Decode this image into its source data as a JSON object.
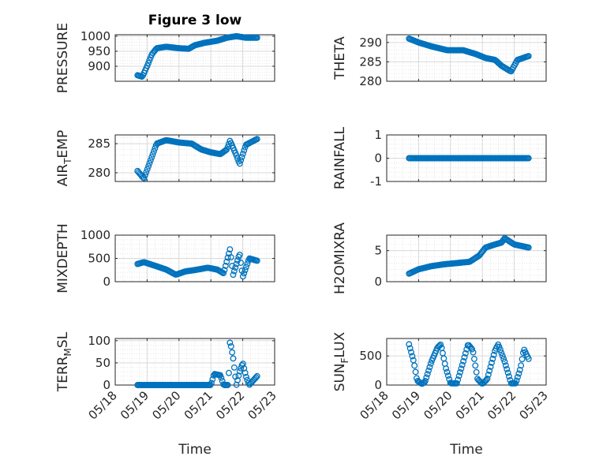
{
  "chart_data": [
    {
      "type": "scatter",
      "title": "Figure 3 low",
      "ylabel": "PRESSURE",
      "xlabel": "",
      "ylim": [
        850,
        1005
      ],
      "yticks": [
        900,
        950,
        1000
      ],
      "xlim_days": [
        "05/18",
        "05/23"
      ],
      "grid": true,
      "series_profile": [
        [
          18.7,
          870
        ],
        [
          18.85,
          865
        ],
        [
          19.0,
          900
        ],
        [
          19.15,
          940
        ],
        [
          19.3,
          960
        ],
        [
          19.6,
          965
        ],
        [
          20.0,
          960
        ],
        [
          20.3,
          958
        ],
        [
          20.5,
          970
        ],
        [
          20.8,
          978
        ],
        [
          21.2,
          985
        ],
        [
          21.5,
          995
        ],
        [
          21.8,
          1000
        ],
        [
          22.1,
          995
        ],
        [
          22.45,
          995
        ]
      ]
    },
    {
      "type": "scatter",
      "ylabel": "THETA",
      "ylim": [
        280,
        292
      ],
      "yticks": [
        280,
        285,
        290
      ],
      "grid": true,
      "series_profile": [
        [
          18.7,
          291
        ],
        [
          19.0,
          290
        ],
        [
          19.4,
          289
        ],
        [
          19.9,
          288
        ],
        [
          20.4,
          288
        ],
        [
          20.8,
          287
        ],
        [
          21.1,
          286
        ],
        [
          21.4,
          285.5
        ],
        [
          21.6,
          284
        ],
        [
          21.8,
          283
        ],
        [
          21.9,
          282.5
        ],
        [
          22.1,
          285.5
        ],
        [
          22.45,
          286.5
        ]
      ]
    },
    {
      "type": "scatter",
      "ylabel": "AIR_TEMP",
      "ylim": [
        278.5,
        286.5
      ],
      "yticks": [
        280,
        285
      ],
      "grid": true,
      "series_profile": [
        [
          18.7,
          280.3
        ],
        [
          18.9,
          279
        ],
        [
          19.1,
          282
        ],
        [
          19.3,
          285
        ],
        [
          19.6,
          285.6
        ],
        [
          20.0,
          285.2
        ],
        [
          20.4,
          285
        ],
        [
          20.7,
          284
        ],
        [
          21.0,
          283.5
        ],
        [
          21.3,
          283.2
        ],
        [
          21.5,
          284
        ],
        [
          21.6,
          285.5
        ],
        [
          21.8,
          283
        ],
        [
          21.9,
          281.5
        ],
        [
          22.1,
          284.8
        ],
        [
          22.45,
          285.8
        ]
      ]
    },
    {
      "type": "scatter",
      "ylabel": "RAINFALL",
      "ylim": [
        -1,
        1
      ],
      "yticks": [
        -1,
        0,
        1
      ],
      "grid": true,
      "series_profile": [
        [
          18.7,
          0
        ],
        [
          22.45,
          0
        ]
      ]
    },
    {
      "type": "scatter",
      "ylabel": "MIXDEPTH",
      "ylim": [
        0,
        1000
      ],
      "yticks": [
        0,
        500,
        1000
      ],
      "grid": true,
      "series_profile": [
        [
          18.7,
          380
        ],
        [
          18.9,
          420
        ],
        [
          19.3,
          330
        ],
        [
          19.6,
          260
        ],
        [
          19.9,
          150
        ],
        [
          20.2,
          220
        ],
        [
          20.5,
          250
        ],
        [
          20.9,
          300
        ],
        [
          21.2,
          260
        ],
        [
          21.4,
          180
        ],
        [
          21.6,
          700
        ],
        [
          21.7,
          150
        ],
        [
          21.9,
          600
        ],
        [
          22.0,
          100
        ],
        [
          22.2,
          500
        ],
        [
          22.45,
          450
        ]
      ]
    },
    {
      "type": "scatter",
      "ylabel": "H2OMIXRA",
      "ylim": [
        0,
        7.5
      ],
      "yticks": [
        0,
        5
      ],
      "grid": true,
      "series_profile": [
        [
          18.7,
          1.3
        ],
        [
          19.0,
          2.0
        ],
        [
          19.4,
          2.5
        ],
        [
          19.8,
          2.8
        ],
        [
          20.2,
          3.0
        ],
        [
          20.6,
          3.2
        ],
        [
          20.9,
          4.2
        ],
        [
          21.1,
          5.5
        ],
        [
          21.4,
          6.0
        ],
        [
          21.6,
          6.3
        ],
        [
          21.7,
          7.0
        ],
        [
          22.0,
          6.0
        ],
        [
          22.45,
          5.5
        ]
      ]
    },
    {
      "type": "scatter",
      "ylabel": "TERR_MSL",
      "ylim": [
        0,
        105
      ],
      "yticks": [
        0,
        50,
        100
      ],
      "grid": true,
      "series_profile": [
        [
          18.7,
          0
        ],
        [
          21.0,
          0
        ],
        [
          21.1,
          25
        ],
        [
          21.3,
          22
        ],
        [
          21.4,
          0
        ],
        [
          21.55,
          0
        ],
        [
          21.6,
          100
        ],
        [
          21.7,
          60
        ],
        [
          21.8,
          0
        ],
        [
          21.9,
          30
        ],
        [
          22.0,
          50
        ],
        [
          22.1,
          20
        ],
        [
          22.2,
          0
        ],
        [
          22.45,
          20
        ]
      ]
    },
    {
      "type": "scatter",
      "ylabel": "SUN_FLUX",
      "ylim": [
        0,
        800
      ],
      "yticks": [
        0,
        500
      ],
      "grid": true,
      "series_profile": [
        [
          18.7,
          700
        ],
        [
          18.85,
          400
        ],
        [
          18.95,
          80
        ],
        [
          19.1,
          20
        ],
        [
          19.2,
          50
        ],
        [
          19.4,
          400
        ],
        [
          19.6,
          650
        ],
        [
          19.7,
          700
        ],
        [
          19.85,
          300
        ],
        [
          20.0,
          30
        ],
        [
          20.2,
          30
        ],
        [
          20.4,
          400
        ],
        [
          20.55,
          700
        ],
        [
          20.7,
          600
        ],
        [
          20.85,
          100
        ],
        [
          21.0,
          20
        ],
        [
          21.15,
          100
        ],
        [
          21.4,
          600
        ],
        [
          21.5,
          700
        ],
        [
          21.7,
          400
        ],
        [
          21.9,
          30
        ],
        [
          22.05,
          30
        ],
        [
          22.2,
          300
        ],
        [
          22.3,
          620
        ],
        [
          22.45,
          450
        ]
      ]
    }
  ],
  "xaxis": {
    "ticks": [
      "05/18",
      "05/19",
      "05/20",
      "05/21",
      "05/22",
      "05/23"
    ],
    "label": "Time"
  },
  "colors": {
    "marker": "#0072bd",
    "axis": "#262626",
    "grid": "#d9d9d9"
  }
}
